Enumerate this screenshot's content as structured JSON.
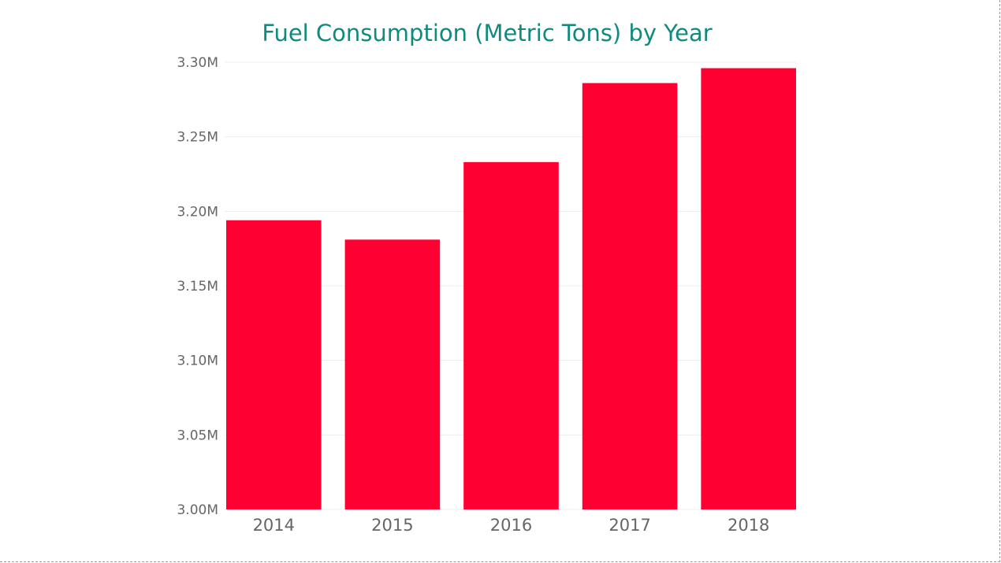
{
  "chart_data": {
    "type": "bar",
    "title": "Fuel Consumption (Metric Tons) by Year",
    "xlabel": "",
    "ylabel": "",
    "categories": [
      "2014",
      "2015",
      "2016",
      "2017",
      "2018"
    ],
    "values": [
      3194000,
      3181000,
      3233000,
      3286000,
      3296000
    ],
    "ylim": [
      3000000,
      3300000
    ],
    "yticks": [
      3000000,
      3050000,
      3100000,
      3150000,
      3200000,
      3250000,
      3300000
    ],
    "ytick_labels": [
      "3.00M",
      "3.05M",
      "3.10M",
      "3.15M",
      "3.20M",
      "3.25M",
      "3.30M"
    ],
    "grid": true,
    "legend": "none",
    "bar_color": "#ff0033",
    "title_color": "#118a7e"
  }
}
